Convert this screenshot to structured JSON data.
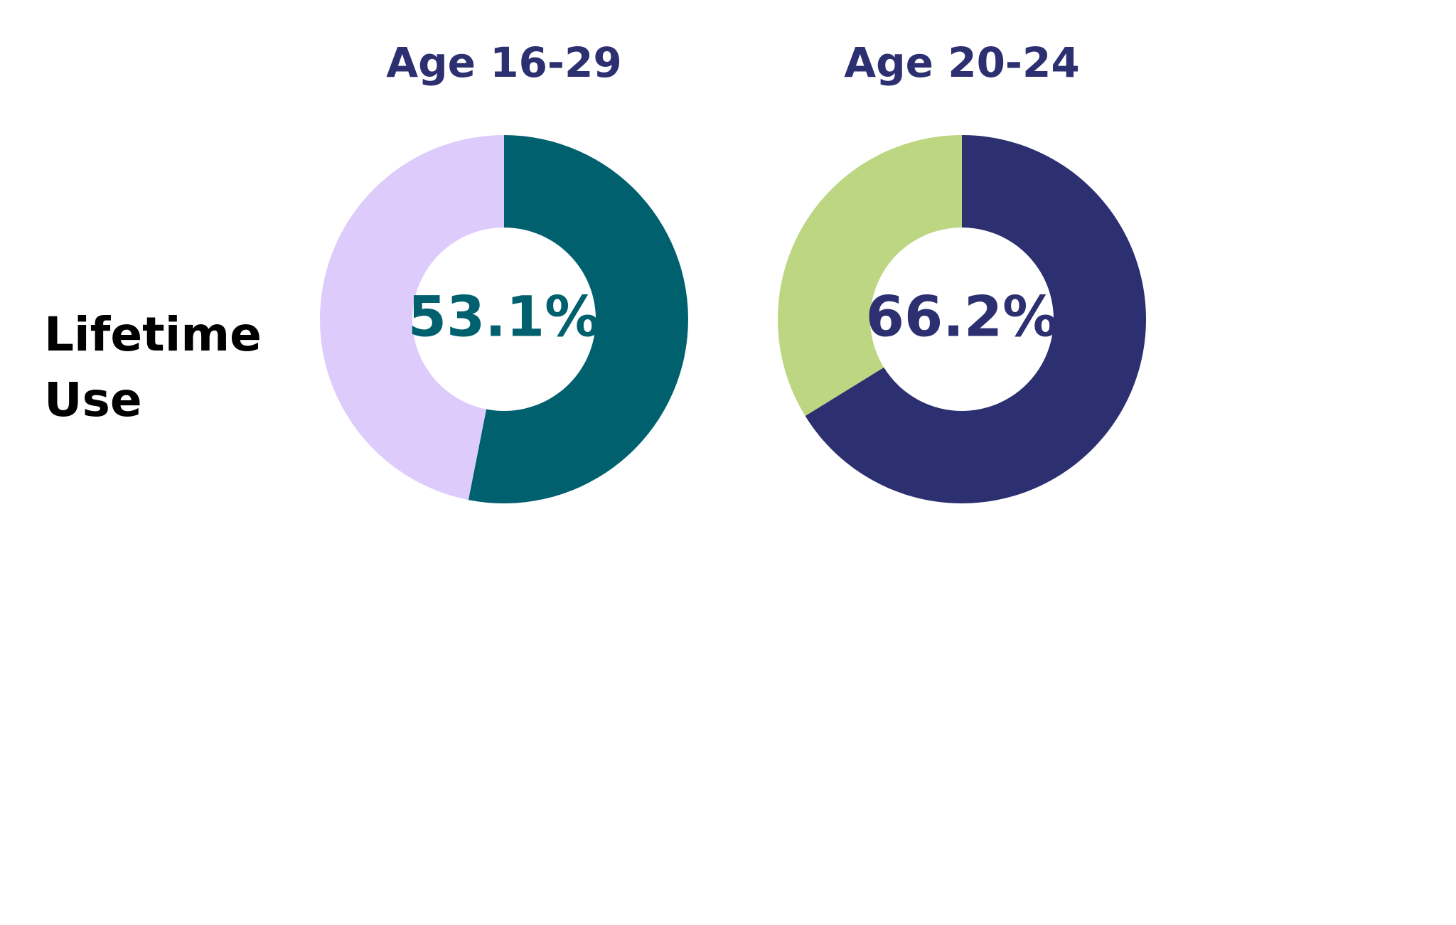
{
  "row_label": "Lifetime Use",
  "chart_data": [
    {
      "type": "pie",
      "title": "Age 16-29",
      "values": [
        53.1,
        46.9
      ],
      "value_labels": [
        "53.1%",
        null
      ],
      "colors": [
        "#00606e",
        "#dccbfb"
      ],
      "title_color": "#2c2f70"
    },
    {
      "type": "pie",
      "title": "Age 20-24",
      "values": [
        66.2,
        33.8
      ],
      "value_labels": [
        "66.2%",
        null
      ],
      "colors": [
        "#2c2f70",
        "#bcd681"
      ],
      "title_color": "#2c2f70"
    }
  ]
}
